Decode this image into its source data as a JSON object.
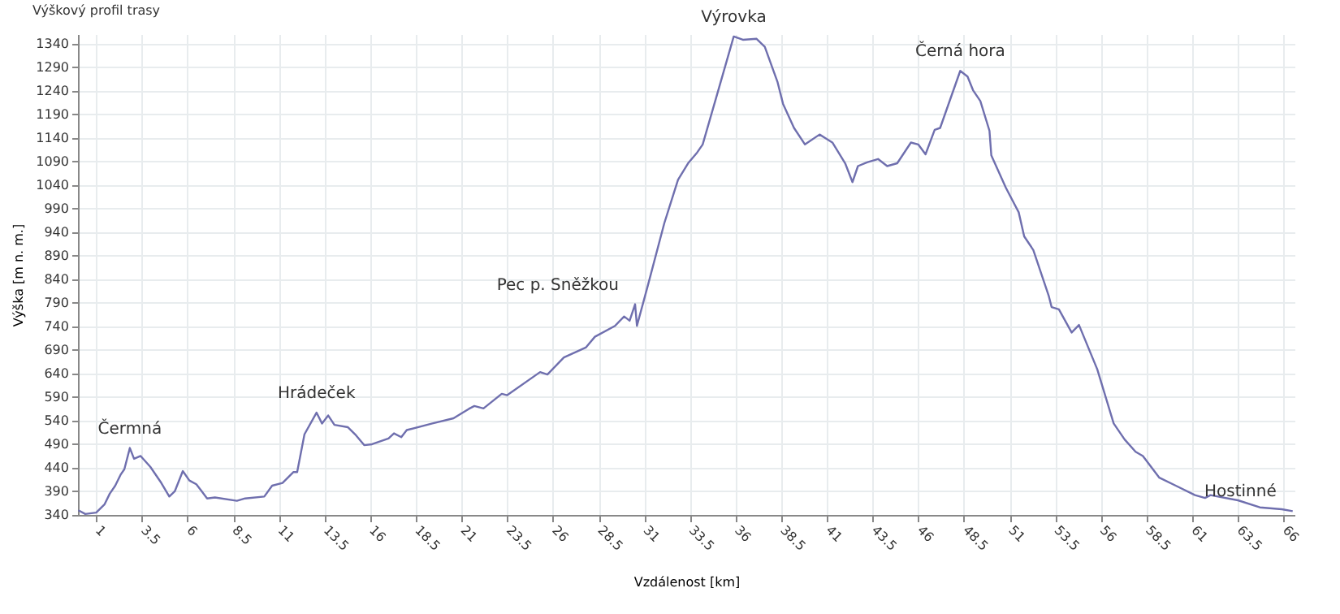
{
  "chart_data": {
    "type": "line",
    "title": "Výškový profil trasy",
    "xlabel": "Vzdálenost [km]",
    "ylabel": "Výška [m n. m.]",
    "x": [
      0.02,
      0.4,
      1.0,
      1.45,
      1.74,
      2.04,
      2.33,
      2.54,
      2.84,
      3.07,
      3.43,
      3.96,
      4.56,
      5.0,
      5.3,
      5.74,
      6.1,
      6.48,
      6.78,
      7.07,
      7.5,
      8.7,
      9.15,
      10.2,
      10.63,
      11.2,
      11.8,
      12.0,
      12.4,
      13.06,
      13.36,
      13.7,
      14.04,
      14.78,
      15.22,
      15.67,
      16.1,
      17.0,
      17.3,
      17.7,
      18.0,
      19.4,
      20.56,
      21.4,
      21.7,
      22.2,
      23.2,
      23.5,
      25.3,
      25.7,
      26.6,
      27.8,
      28.3,
      29.4,
      29.9,
      30.2,
      30.5,
      30.6,
      31.2,
      32.1,
      32.85,
      33.4,
      33.9,
      34.2,
      35.1,
      35.9,
      36.4,
      37.15,
      37.6,
      38.3,
      38.6,
      39.2,
      39.8,
      40.6,
      41.3,
      42.0,
      42.4,
      42.7,
      43.2,
      43.8,
      44.3,
      44.85,
      45.6,
      46.0,
      46.4,
      46.9,
      47.2,
      48.3,
      48.7,
      49.0,
      49.4,
      49.9,
      50.0,
      50.8,
      51.5,
      51.8,
      52.3,
      53.15,
      53.3,
      53.7,
      54.4,
      54.8,
      55.8,
      56.7,
      57.3,
      57.9,
      58.3,
      59.2,
      60.1,
      61.15,
      61.7,
      62.0,
      63.5,
      64.7,
      65.9,
      66.5
    ],
    "series": [
      {
        "color": "#6f6fae",
        "values": [
          350,
          342,
          345,
          362,
          385,
          402,
          425,
          437,
          482,
          459,
          465,
          442,
          408,
          379,
          390,
          433,
          413,
          405,
          390,
          375,
          377,
          370,
          375,
          379,
          402,
          408,
          431,
          431,
          511,
          557,
          534,
          551,
          531,
          526,
          509,
          488,
          490,
          502,
          513,
          505,
          520,
          534,
          545,
          565,
          571,
          566,
          597,
          594,
          643,
          638,
          674,
          695,
          718,
          741,
          761,
          752,
          787,
          741,
          827,
          959,
          1051,
          1086,
          1109,
          1126,
          1247,
          1355,
          1348,
          1350,
          1333,
          1258,
          1212,
          1161,
          1126,
          1147,
          1130,
          1086,
          1046,
          1080,
          1088,
          1095,
          1080,
          1086,
          1130,
          1126,
          1105,
          1157,
          1161,
          1282,
          1270,
          1241,
          1218,
          1155,
          1103,
          1034,
          982,
          931,
          902,
          804,
          781,
          776,
          727,
          743,
          649,
          534,
          500,
          474,
          465,
          419,
          402,
          382,
          376,
          382,
          371,
          356,
          352,
          348
        ]
      }
    ],
    "xlim": [
      0,
      66.6
    ],
    "ylim": [
      340,
      1360
    ],
    "xticks": [
      {
        "value": 1,
        "label": "1"
      },
      {
        "value": 3.5,
        "label": "3.5"
      },
      {
        "value": 6,
        "label": "6"
      },
      {
        "value": 8.5,
        "label": "8.5"
      },
      {
        "value": 11,
        "label": "11"
      },
      {
        "value": 13.5,
        "label": "13.5"
      },
      {
        "value": 16,
        "label": "16"
      },
      {
        "value": 18.5,
        "label": "18.5"
      },
      {
        "value": 21,
        "label": "21"
      },
      {
        "value": 23.5,
        "label": "23.5"
      },
      {
        "value": 26,
        "label": "26"
      },
      {
        "value": 28.5,
        "label": "28.5"
      },
      {
        "value": 31,
        "label": "31"
      },
      {
        "value": 33.5,
        "label": "33.5"
      },
      {
        "value": 36,
        "label": "36"
      },
      {
        "value": 38.5,
        "label": "38.5"
      },
      {
        "value": 41,
        "label": "41"
      },
      {
        "value": 43.5,
        "label": "43.5"
      },
      {
        "value": 46,
        "label": "46"
      },
      {
        "value": 48.5,
        "label": "48.5"
      },
      {
        "value": 51,
        "label": "51"
      },
      {
        "value": 53.5,
        "label": "53.5"
      },
      {
        "value": 56,
        "label": "56"
      },
      {
        "value": 58.5,
        "label": "58.5"
      },
      {
        "value": 61,
        "label": "61"
      },
      {
        "value": 63.5,
        "label": "63.5"
      },
      {
        "value": 66,
        "label": "66"
      }
    ],
    "yticks": [
      340,
      390,
      440,
      490,
      540,
      590,
      640,
      690,
      740,
      790,
      840,
      890,
      940,
      990,
      1040,
      1090,
      1140,
      1190,
      1240,
      1290,
      1340
    ],
    "grid": true,
    "marker": "none",
    "line_style": "solid",
    "annotations": [
      {
        "text": "Čermná",
        "x": 2.84,
        "y": 482
      },
      {
        "text": "Hrádeček",
        "x": 13.06,
        "y": 557
      },
      {
        "text": "Pec p. Sněžkou",
        "x": 30.5,
        "y": 787
      },
      {
        "text": "Výrovka",
        "x": 35.9,
        "y": 1355
      },
      {
        "text": "Černá hora",
        "x": 48.3,
        "y": 1282
      },
      {
        "text": "Hostinné",
        "x": 66.5,
        "y": 348
      }
    ]
  }
}
